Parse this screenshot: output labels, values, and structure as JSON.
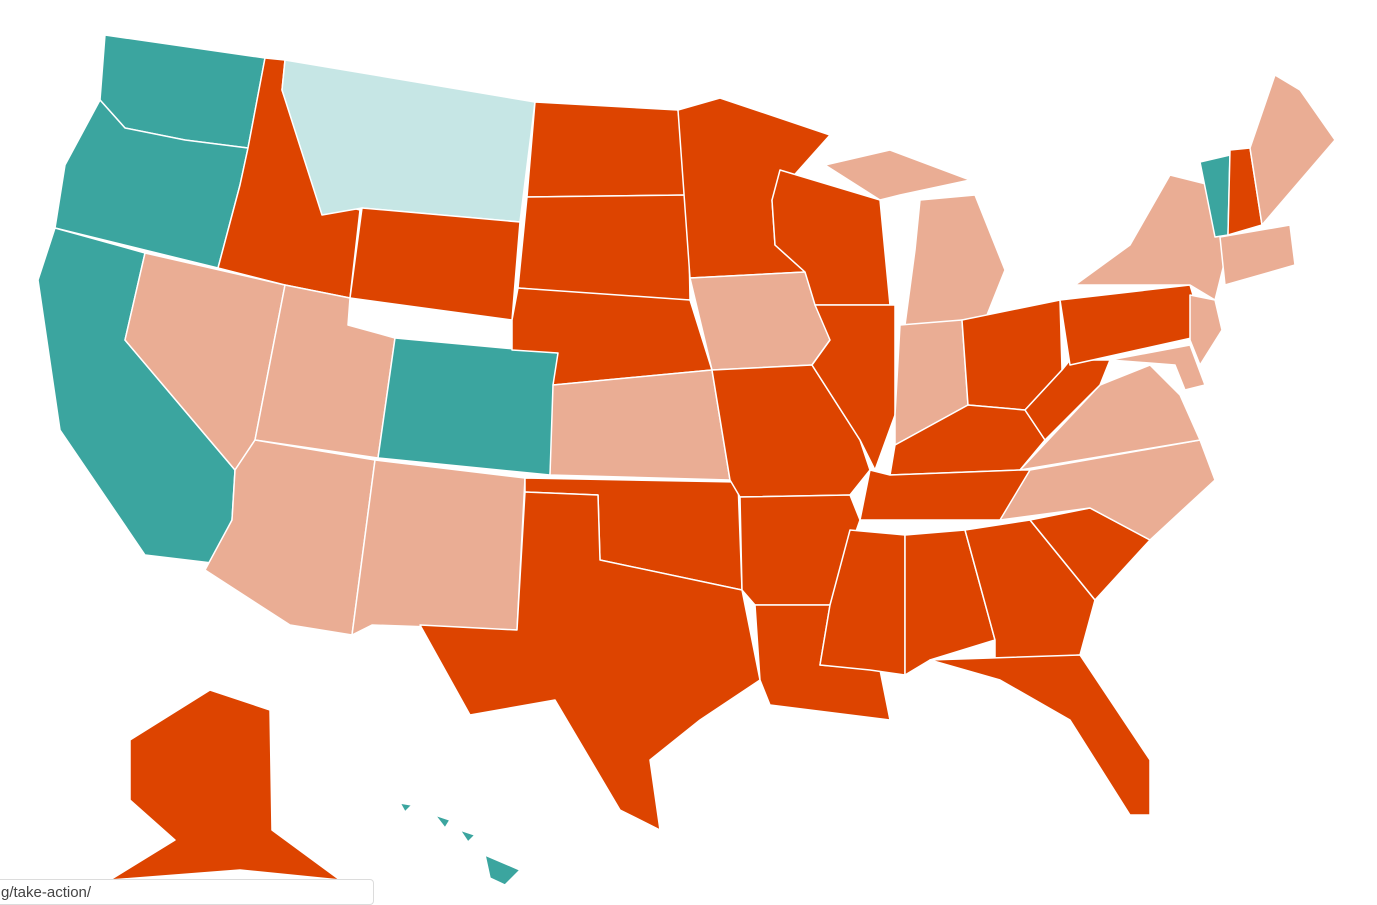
{
  "status_bar": {
    "url": "g/take-action/"
  },
  "palette": {
    "dark_teal": "#3ba59f",
    "light_teal": "#c6e6e5",
    "dark_orange": "#dd4400",
    "salmon": "#eaad94"
  }
}
